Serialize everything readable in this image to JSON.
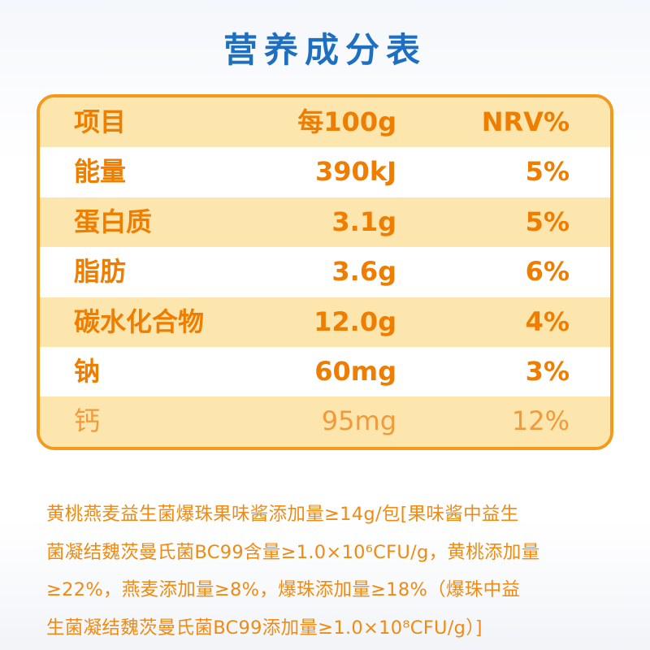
{
  "title": "营养成分表",
  "table": {
    "header": [
      "项目",
      "每100g",
      "NRV%"
    ],
    "rows": [
      [
        "能量",
        "390kJ",
        "5%"
      ],
      [
        "蛋白质",
        "3.1g",
        "5%"
      ],
      [
        "脂肪",
        "3.6g",
        "6%"
      ],
      [
        "碳水化合物",
        "12.0g",
        "4%"
      ],
      [
        "钠",
        "60mg",
        "3%"
      ],
      [
        "钙",
        "95mg",
        "12%"
      ]
    ]
  },
  "note": {
    "lines": [
      "黄桃燕麦益生菌爆珠果味酱添加量≥14g/包[果味酱中益生",
      "菌凝结魏茨曼氏菌BC99含量≥1.0×10⁶CFU/g，黄桃添加量",
      "≥22%，燕麦添加量≥8%，爆珠添加量≥18%（爆珠中益",
      "生菌凝结魏茨曼氏菌BC99添加量≥1.0×10⁸CFU/g）]"
    ]
  }
}
